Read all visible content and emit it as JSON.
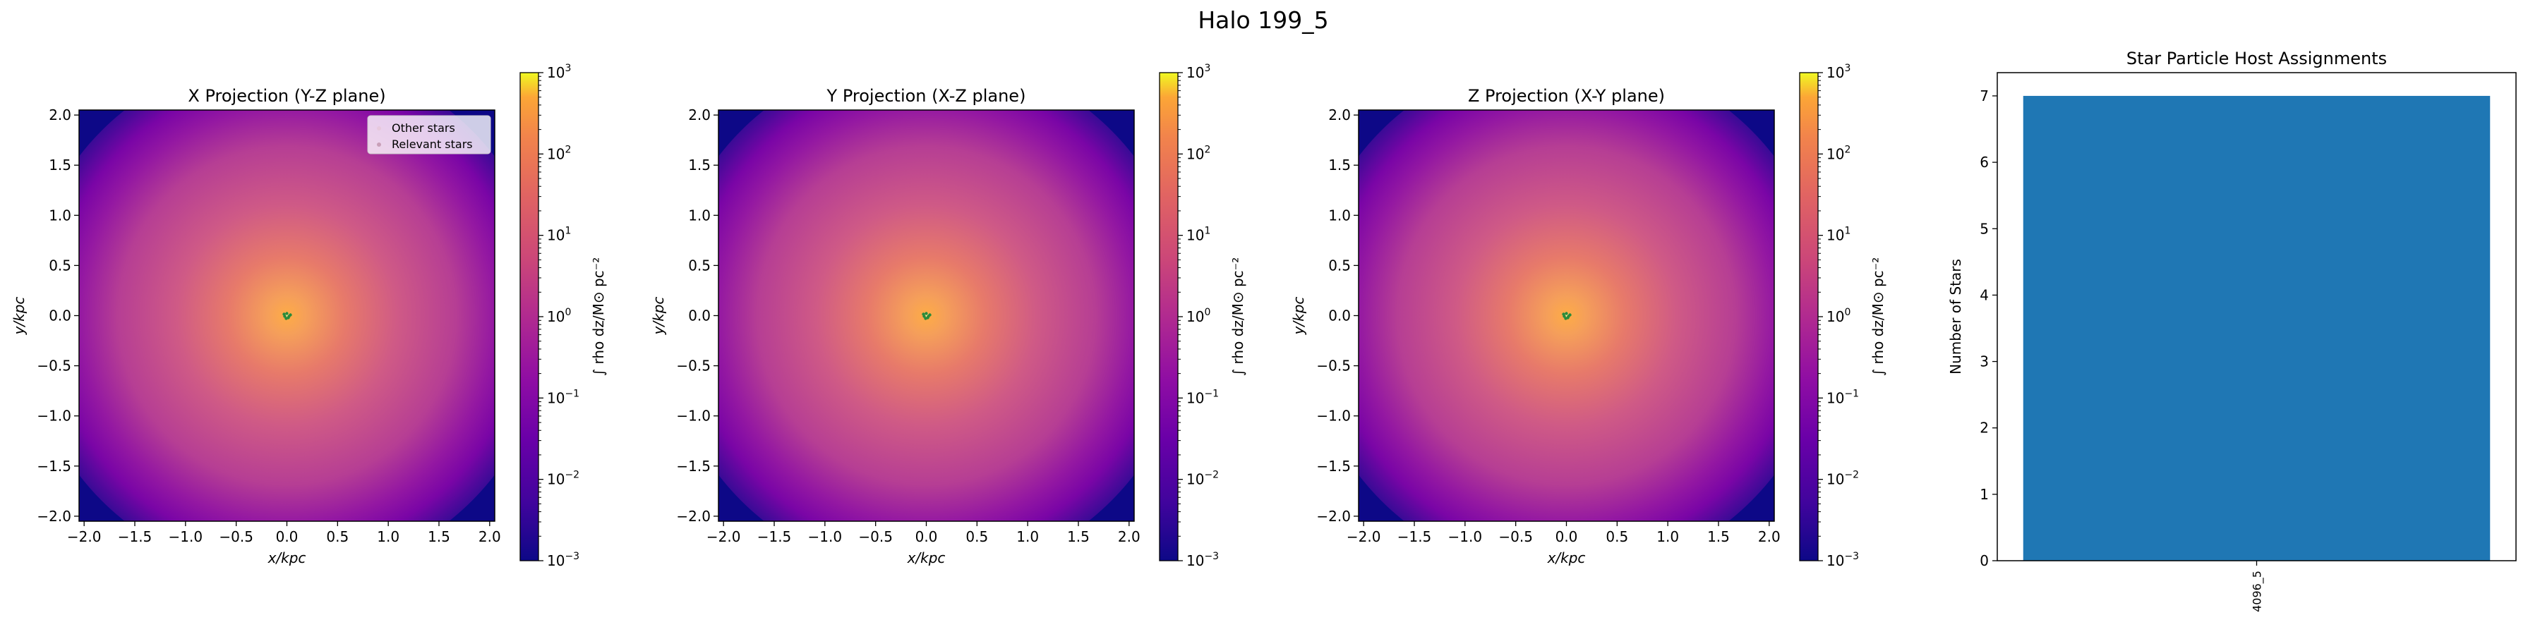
{
  "figure": {
    "suptitle": "Halo 199_5"
  },
  "chart_data": [
    {
      "type": "heatmap",
      "title": "X Projection (Y-Z plane)",
      "xlabel": "x/kpc",
      "ylabel": "y/kpc",
      "xlim": [
        -2.05,
        2.05
      ],
      "ylim": [
        -2.05,
        2.05
      ],
      "xticks": [
        "−2.0",
        "−1.5",
        "−1.0",
        "−0.5",
        "0.0",
        "0.5",
        "1.0",
        "1.5",
        "2.0"
      ],
      "xtick_values": [
        -2.0,
        -1.5,
        -1.0,
        -0.5,
        0.0,
        0.5,
        1.0,
        1.5,
        2.0
      ],
      "yticks": [
        "−2.0",
        "−1.5",
        "−1.0",
        "−0.5",
        "0.0",
        "0.5",
        "1.0",
        "1.5",
        "2.0"
      ],
      "ytick_values": [
        -2.0,
        -1.5,
        -1.0,
        -0.5,
        0.0,
        0.5,
        1.0,
        1.5,
        2.0
      ],
      "legend": {
        "entries": [
          "Other stars",
          "Relevant stars"
        ],
        "placement": "upper-right"
      },
      "colorbar": {
        "label": "∫ rho dz/M⊙ pc⁻²",
        "scale": "log",
        "range": [
          0.001,
          1000
        ],
        "tick_exponents": [
          "3",
          "2",
          "1",
          "0",
          "−1",
          "−2",
          "−3"
        ]
      }
    },
    {
      "type": "heatmap",
      "title": "Y Projection (X-Z plane)",
      "xlabel": "x/kpc",
      "ylabel": "y/kpc",
      "xlim": [
        -2.05,
        2.05
      ],
      "ylim": [
        -2.05,
        2.05
      ],
      "xticks": [
        "−2.0",
        "−1.5",
        "−1.0",
        "−0.5",
        "0.0",
        "0.5",
        "1.0",
        "1.5",
        "2.0"
      ],
      "xtick_values": [
        -2.0,
        -1.5,
        -1.0,
        -0.5,
        0.0,
        0.5,
        1.0,
        1.5,
        2.0
      ],
      "yticks": [
        "−2.0",
        "−1.5",
        "−1.0",
        "−0.5",
        "0.0",
        "0.5",
        "1.0",
        "1.5",
        "2.0"
      ],
      "ytick_values": [
        -2.0,
        -1.5,
        -1.0,
        -0.5,
        0.0,
        0.5,
        1.0,
        1.5,
        2.0
      ],
      "colorbar": {
        "label": "∫ rho dz/M⊙ pc⁻²",
        "scale": "log",
        "range": [
          0.001,
          1000
        ],
        "tick_exponents": [
          "3",
          "2",
          "1",
          "0",
          "−1",
          "−2",
          "−3"
        ]
      }
    },
    {
      "type": "heatmap",
      "title": "Z Projection (X-Y plane)",
      "xlabel": "x/kpc",
      "ylabel": "y/kpc",
      "xlim": [
        -2.05,
        2.05
      ],
      "ylim": [
        -2.05,
        2.05
      ],
      "xticks": [
        "−2.0",
        "−1.5",
        "−1.0",
        "−0.5",
        "0.0",
        "0.5",
        "1.0",
        "1.5",
        "2.0"
      ],
      "xtick_values": [
        -2.0,
        -1.5,
        -1.0,
        -0.5,
        0.0,
        0.5,
        1.0,
        1.5,
        2.0
      ],
      "yticks": [
        "−2.0",
        "−1.5",
        "−1.0",
        "−0.5",
        "0.0",
        "0.5",
        "1.0",
        "1.5",
        "2.0"
      ],
      "ytick_values": [
        -2.0,
        -1.5,
        -1.0,
        -0.5,
        0.0,
        0.5,
        1.0,
        1.5,
        2.0
      ],
      "colorbar": {
        "label": "∫ rho dz/M⊙ pc⁻²",
        "scale": "log",
        "range": [
          0.001,
          1000
        ],
        "tick_exponents": [
          "3",
          "2",
          "1",
          "0",
          "−1",
          "−2",
          "−3"
        ]
      }
    },
    {
      "type": "bar",
      "title": "Star Particle Host Assignments",
      "xlabel": "",
      "ylabel": "Number of Stars",
      "categories": [
        "4096_5"
      ],
      "values": [
        7
      ],
      "ylim": [
        0,
        7.35
      ],
      "yticks": [
        "0",
        "1",
        "2",
        "3",
        "4",
        "5",
        "6",
        "7"
      ],
      "ytick_values": [
        0,
        1,
        2,
        3,
        4,
        5,
        6,
        7
      ],
      "bar_color": "#1f77b4"
    }
  ]
}
